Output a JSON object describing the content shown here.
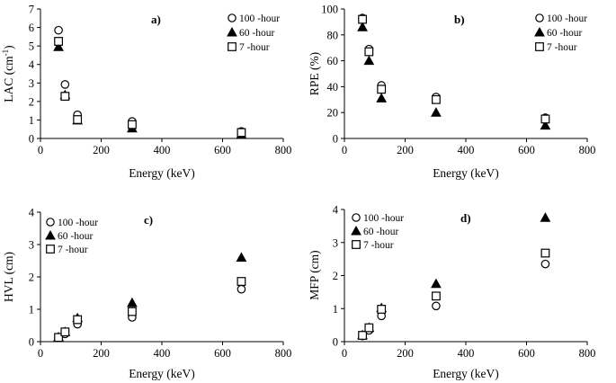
{
  "chart_data": [
    {
      "type": "scatter",
      "panel_label": "a)",
      "xlabel": "Energy (keV)",
      "ylabel": "LAC (cm",
      "ylabel_sup": "-1",
      "ylabel_tail": ")",
      "xlim": [
        0,
        800
      ],
      "ylim": [
        0,
        7
      ],
      "xticks": [
        "0",
        "200",
        "400",
        "600",
        "800"
      ],
      "yticks": [
        "0",
        "1",
        "2",
        "3",
        "4",
        "5",
        "6",
        "7"
      ],
      "legend_position": "top-right",
      "series": [
        {
          "name": "100 -hour",
          "marker": "circle",
          "x": [
            59.5,
            81,
            122,
            302,
            662
          ],
          "y": [
            5.85,
            2.92,
            1.28,
            0.92,
            0.38
          ]
        },
        {
          "name": "60 -hour",
          "marker": "triangle",
          "x": [
            59.5,
            81,
            122,
            302,
            662
          ],
          "y": [
            4.95,
            2.35,
            0.98,
            0.55,
            0.22
          ]
        },
        {
          "name": "7 -hour",
          "marker": "square",
          "x": [
            59.5,
            81,
            122,
            302,
            662
          ],
          "y": [
            5.25,
            2.28,
            1.02,
            0.75,
            0.32
          ]
        }
      ]
    },
    {
      "type": "scatter",
      "panel_label": "b)",
      "xlabel": "Energy (keV)",
      "ylabel": "RPE (%)",
      "xlim": [
        0,
        800
      ],
      "ylim": [
        0,
        100
      ],
      "xticks": [
        "0",
        "200",
        "400",
        "600",
        "800"
      ],
      "yticks": [
        "0",
        "20",
        "40",
        "60",
        "80",
        "100"
      ],
      "legend_position": "top-right",
      "series": [
        {
          "name": "100 -hour",
          "marker": "circle",
          "x": [
            59.5,
            81,
            122,
            302,
            662
          ],
          "y": [
            93,
            69,
            41,
            32,
            16
          ]
        },
        {
          "name": "60 -hour",
          "marker": "triangle",
          "x": [
            59.5,
            81,
            122,
            302,
            662
          ],
          "y": [
            86,
            60,
            31,
            20,
            10
          ]
        },
        {
          "name": "7 -hour",
          "marker": "square",
          "x": [
            59.5,
            81,
            122,
            302,
            662
          ],
          "y": [
            92,
            67,
            38,
            30,
            15
          ]
        }
      ]
    },
    {
      "type": "scatter",
      "panel_label": "c)",
      "xlabel": "Energy (keV)",
      "ylabel": "HVL (cm)",
      "xlim": [
        0,
        800
      ],
      "ylim": [
        0,
        4
      ],
      "xticks": [
        "0",
        "200",
        "400",
        "600",
        "800"
      ],
      "yticks": [
        "0",
        "1",
        "2",
        "3",
        "4"
      ],
      "legend_position": "top-left",
      "series": [
        {
          "name": "100 -hour",
          "marker": "circle",
          "x": [
            59.5,
            81,
            122,
            302,
            662
          ],
          "y": [
            0.12,
            0.24,
            0.54,
            0.75,
            1.62
          ]
        },
        {
          "name": "60 -hour",
          "marker": "triangle",
          "x": [
            59.5,
            81,
            122,
            302,
            662
          ],
          "y": [
            0.14,
            0.3,
            0.73,
            1.2,
            2.6
          ]
        },
        {
          "name": "7 -hour",
          "marker": "square",
          "x": [
            59.5,
            81,
            122,
            302,
            662
          ],
          "y": [
            0.13,
            0.3,
            0.68,
            0.93,
            1.86
          ]
        }
      ]
    },
    {
      "type": "scatter",
      "panel_label": "d)",
      "xlabel": "Energy (keV)",
      "ylabel": "MFP (cm)",
      "xlim": [
        0,
        800
      ],
      "ylim": [
        0,
        4
      ],
      "xticks": [
        "0",
        "200",
        "400",
        "600",
        "800"
      ],
      "yticks": [
        "0",
        "1",
        "2",
        "3",
        "4"
      ],
      "legend_position": "top-left",
      "series": [
        {
          "name": "100 -hour",
          "marker": "circle",
          "x": [
            59.5,
            81,
            122,
            302,
            662
          ],
          "y": [
            0.17,
            0.34,
            0.78,
            1.08,
            2.35
          ]
        },
        {
          "name": "60 -hour",
          "marker": "triangle",
          "x": [
            59.5,
            81,
            122,
            302,
            662
          ],
          "y": [
            0.2,
            0.42,
            1.02,
            1.75,
            3.75
          ]
        },
        {
          "name": "7 -hour",
          "marker": "square",
          "x": [
            59.5,
            81,
            122,
            302,
            662
          ],
          "y": [
            0.19,
            0.42,
            0.98,
            1.38,
            2.68
          ]
        }
      ]
    }
  ]
}
